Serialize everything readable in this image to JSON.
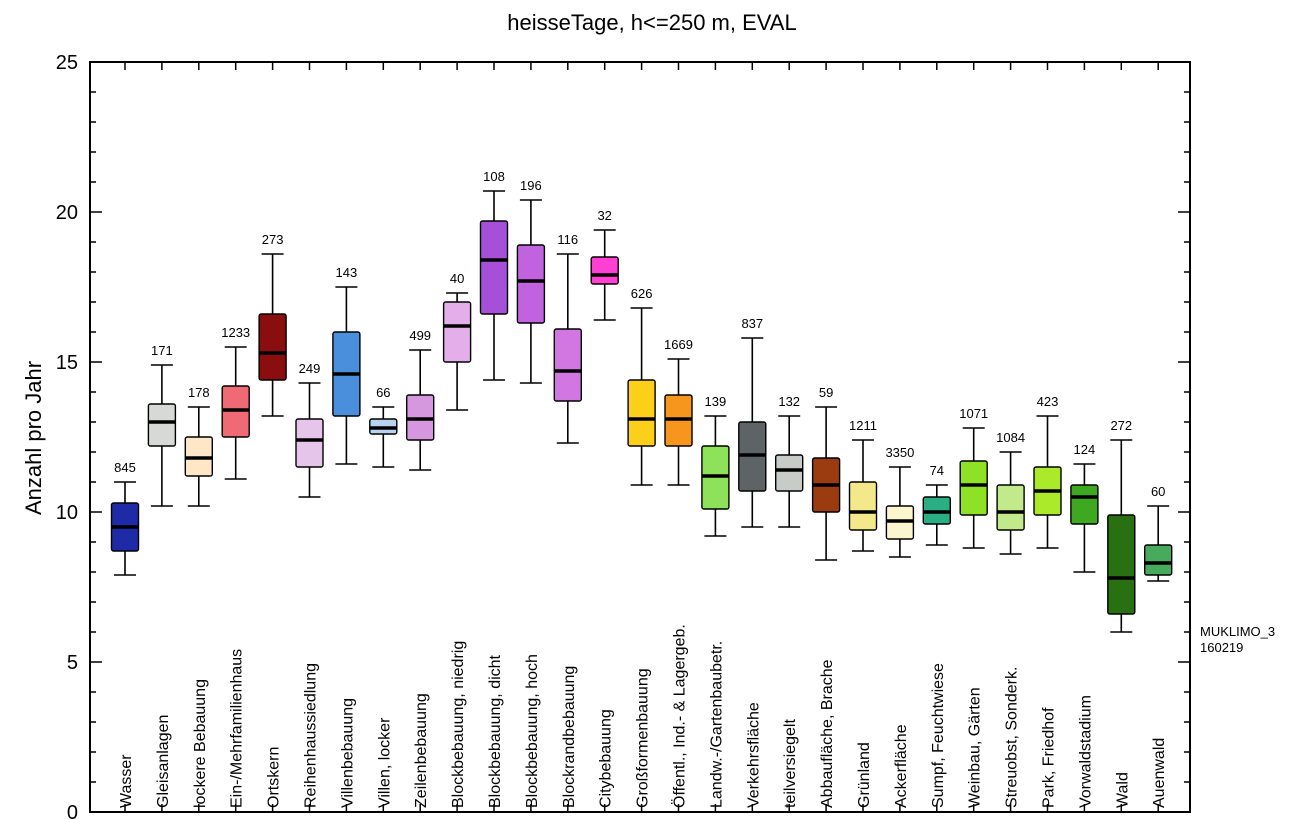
{
  "chart_data": {
    "type": "boxplot",
    "title": "heisseTage, h<=250 m, EVAL",
    "ylabel": "Anzahl pro Jahr",
    "xlabel": "",
    "ylim": [
      0,
      25
    ],
    "yticks": [
      0,
      5,
      10,
      15,
      20,
      25
    ],
    "grid": false,
    "note": [
      "MUKLIMO_3",
      "160219"
    ],
    "categories": [
      {
        "label": "Wasser",
        "n": "845",
        "whisker_low": 7.9,
        "q1": 8.7,
        "median": 9.5,
        "q3": 10.3,
        "whisker_high": 11.0,
        "color": "#1f2aa6"
      },
      {
        "label": "Gleisanlagen",
        "n": "171",
        "whisker_low": 10.2,
        "q1": 12.2,
        "median": 13.0,
        "q3": 13.6,
        "whisker_high": 14.9,
        "color": "#d6d9d6"
      },
      {
        "label": "lockere Bebauung",
        "n": "178",
        "whisker_low": 10.2,
        "q1": 11.2,
        "median": 11.8,
        "q3": 12.5,
        "whisker_high": 13.5,
        "color": "#fde7c6"
      },
      {
        "label": "Ein-/Mehrfamilienhaus",
        "n": "1233",
        "whisker_low": 11.1,
        "q1": 12.5,
        "median": 13.4,
        "q3": 14.2,
        "whisker_high": 15.5,
        "color": "#f06a76"
      },
      {
        "label": "Ortskern",
        "n": "273",
        "whisker_low": 13.2,
        "q1": 14.4,
        "median": 15.3,
        "q3": 16.6,
        "whisker_high": 18.6,
        "color": "#8b0e0e"
      },
      {
        "label": "Reihenhaussiedlung",
        "n": "249",
        "whisker_low": 10.5,
        "q1": 11.5,
        "median": 12.4,
        "q3": 13.1,
        "whisker_high": 14.3,
        "color": "#e6c5ea"
      },
      {
        "label": "Villenbebauung",
        "n": "143",
        "whisker_low": 11.6,
        "q1": 13.2,
        "median": 14.6,
        "q3": 16.0,
        "whisker_high": 17.5,
        "color": "#4a8fdc"
      },
      {
        "label": "Villen, locker",
        "n": "66",
        "whisker_low": 11.5,
        "q1": 12.6,
        "median": 12.8,
        "q3": 13.1,
        "whisker_high": 13.5,
        "color": "#b9d2ee"
      },
      {
        "label": "Zeilenbebauung",
        "n": "499",
        "whisker_low": 11.4,
        "q1": 12.4,
        "median": 13.1,
        "q3": 13.9,
        "whisker_high": 15.4,
        "color": "#d696e0"
      },
      {
        "label": "Blockbebauung, niedrig",
        "n": "40",
        "whisker_low": 13.4,
        "q1": 15.0,
        "median": 16.2,
        "q3": 17.0,
        "whisker_high": 17.3,
        "color": "#e3aeea"
      },
      {
        "label": "Blockbebauung, dicht",
        "n": "108",
        "whisker_low": 14.4,
        "q1": 16.6,
        "median": 18.4,
        "q3": 19.7,
        "whisker_high": 20.7,
        "color": "#a64fd9"
      },
      {
        "label": "Blockbebauung, hoch",
        "n": "196",
        "whisker_low": 14.3,
        "q1": 16.3,
        "median": 17.7,
        "q3": 18.9,
        "whisker_high": 20.4,
        "color": "#c163de"
      },
      {
        "label": "Blockrandbebauung",
        "n": "116",
        "whisker_low": 12.3,
        "q1": 13.7,
        "median": 14.7,
        "q3": 16.1,
        "whisker_high": 18.6,
        "color": "#d276e2"
      },
      {
        "label": "Citybebauung",
        "n": "32",
        "whisker_low": 16.4,
        "q1": 17.6,
        "median": 17.9,
        "q3": 18.5,
        "whisker_high": 19.4,
        "color": "#ff3fd2"
      },
      {
        "label": "Großformenbauung",
        "n": "626",
        "whisker_low": 10.9,
        "q1": 12.2,
        "median": 13.1,
        "q3": 14.4,
        "whisker_high": 16.8,
        "color": "#fccf19"
      },
      {
        "label": "Öffentl., Ind.- & Lagergeb.",
        "n": "1669",
        "whisker_low": 10.9,
        "q1": 12.2,
        "median": 13.1,
        "q3": 13.9,
        "whisker_high": 15.1,
        "color": "#f6961c"
      },
      {
        "label": "Landw.-/Gartenbaubetr.",
        "n": "139",
        "whisker_low": 9.2,
        "q1": 10.1,
        "median": 11.2,
        "q3": 12.2,
        "whisker_high": 13.2,
        "color": "#8ee25a"
      },
      {
        "label": "Verkehrsfläche",
        "n": "837",
        "whisker_low": 9.5,
        "q1": 10.7,
        "median": 11.9,
        "q3": 13.0,
        "whisker_high": 15.8,
        "color": "#5e6466"
      },
      {
        "label": "teilversiegelt",
        "n": "132",
        "whisker_low": 9.5,
        "q1": 10.7,
        "median": 11.4,
        "q3": 11.9,
        "whisker_high": 13.2,
        "color": "#c8ccc8"
      },
      {
        "label": "Abbaufläche, Brache",
        "n": "59",
        "whisker_low": 8.4,
        "q1": 10.0,
        "median": 10.9,
        "q3": 11.8,
        "whisker_high": 13.5,
        "color": "#9a3b10"
      },
      {
        "label": "Grünland",
        "n": "1211",
        "whisker_low": 8.7,
        "q1": 9.4,
        "median": 10.0,
        "q3": 11.0,
        "whisker_high": 12.4,
        "color": "#f3e98a"
      },
      {
        "label": "Ackerfläche",
        "n": "3350",
        "whisker_low": 8.5,
        "q1": 9.1,
        "median": 9.7,
        "q3": 10.2,
        "whisker_high": 11.5,
        "color": "#fbf6cd"
      },
      {
        "label": "Sumpf, Feuchtwiese",
        "n": "74",
        "whisker_low": 8.9,
        "q1": 9.6,
        "median": 10.0,
        "q3": 10.5,
        "whisker_high": 10.9,
        "color": "#2aae83"
      },
      {
        "label": "Weinbau, Gärten",
        "n": "1071",
        "whisker_low": 8.8,
        "q1": 9.9,
        "median": 10.9,
        "q3": 11.7,
        "whisker_high": 12.8,
        "color": "#8ee125"
      },
      {
        "label": "Streuobst, Sonderk.",
        "n": "1084",
        "whisker_low": 8.6,
        "q1": 9.4,
        "median": 10.0,
        "q3": 10.9,
        "whisker_high": 12.0,
        "color": "#c3ea8a"
      },
      {
        "label": "Park, Friedhof",
        "n": "423",
        "whisker_low": 8.8,
        "q1": 9.9,
        "median": 10.7,
        "q3": 11.5,
        "whisker_high": 13.2,
        "color": "#abea2b"
      },
      {
        "label": "Vorwaldstadium",
        "n": "124",
        "whisker_low": 8.0,
        "q1": 9.6,
        "median": 10.5,
        "q3": 10.9,
        "whisker_high": 11.6,
        "color": "#3ea821"
      },
      {
        "label": "Wald",
        "n": "272",
        "whisker_low": 6.0,
        "q1": 6.6,
        "median": 7.8,
        "q3": 9.9,
        "whisker_high": 12.4,
        "color": "#287012"
      },
      {
        "label": "Auenwald",
        "n": "60",
        "whisker_low": 7.7,
        "q1": 7.9,
        "median": 8.3,
        "q3": 8.9,
        "whisker_high": 10.2,
        "color": "#48aa5c"
      }
    ]
  }
}
